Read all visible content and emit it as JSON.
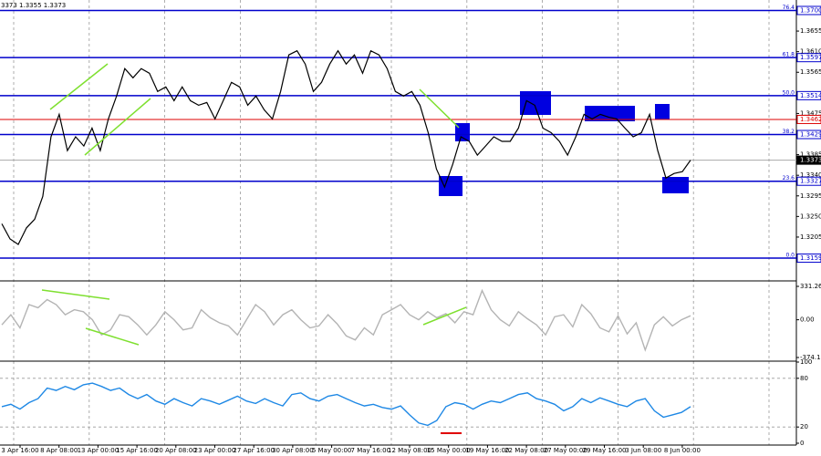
{
  "header": "3373 1.3355 1.3373",
  "chart_data": [
    {
      "type": "line",
      "ylim": [
        1.3115,
        1.3722
      ],
      "yticks": [
        {
          "value": 1.3655,
          "label": "1.3655"
        },
        {
          "value": 1.361,
          "label": "1.3610"
        },
        {
          "value": 1.3565,
          "label": "1.3565"
        },
        {
          "value": 1.3475,
          "label": "1.3475"
        },
        {
          "value": 1.3385,
          "label": "1.3385"
        },
        {
          "value": 1.334,
          "label": "1.3340"
        },
        {
          "value": 1.3295,
          "label": "1.3295"
        },
        {
          "value": 1.325,
          "label": "1.3250"
        },
        {
          "value": 1.3205,
          "label": "1.3205"
        }
      ],
      "levels": [
        {
          "value": 1.37,
          "label": "1.3700",
          "fib": "76.4",
          "color": "#0000cc"
        },
        {
          "value": 1.3597,
          "label": "1.3597",
          "fib": "61.8",
          "color": "#0000cc"
        },
        {
          "value": 1.3514,
          "label": "1.3514",
          "fib": "50.0",
          "color": "#0000cc"
        },
        {
          "value": 1.3462,
          "label": "1.3462",
          "color": "#dd0000"
        },
        {
          "value": 1.3429,
          "label": "1.3429",
          "fib": "38.2",
          "color": "#0000cc"
        },
        {
          "value": 1.3373,
          "label": "1.3373",
          "color": "#000000"
        },
        {
          "value": 1.3327,
          "label": "1.3327",
          "fib": "23.6",
          "color": "#0000cc"
        },
        {
          "value": 1.3159,
          "label": "1.3159",
          "fib": "0.0",
          "color": "#0000cc"
        }
      ],
      "series": [
        {
          "color": "#000000",
          "values": [
            1.3234,
            1.3201,
            1.3189,
            1.3225,
            1.3244,
            1.3294,
            1.3424,
            1.3473,
            1.3394,
            1.3424,
            1.3404,
            1.3443,
            1.3394,
            1.3463,
            1.3513,
            1.3573,
            1.3553,
            1.3573,
            1.3563,
            1.3523,
            1.3533,
            1.3503,
            1.3533,
            1.3503,
            1.3493,
            1.3499,
            1.3463,
            1.3503,
            1.3543,
            1.3533,
            1.3493,
            1.3513,
            1.3483,
            1.3463,
            1.3523,
            1.3603,
            1.3612,
            1.3583,
            1.3523,
            1.3543,
            1.3583,
            1.3612,
            1.3583,
            1.3603,
            1.3563,
            1.3612,
            1.3603,
            1.3573,
            1.3523,
            1.3513,
            1.3523,
            1.3493,
            1.3433,
            1.3354,
            1.3314,
            1.3364,
            1.3424,
            1.3414,
            1.3384,
            1.3404,
            1.3424,
            1.3414,
            1.3414,
            1.3443,
            1.3503,
            1.3493,
            1.3443,
            1.3433,
            1.3414,
            1.3384,
            1.3424,
            1.3473,
            1.3463,
            1.3473,
            1.3467,
            1.3463,
            1.3443,
            1.3424,
            1.3433,
            1.3473,
            1.3394,
            1.3334,
            1.3344,
            1.3348,
            1.3373
          ]
        }
      ]
    },
    {
      "type": "line",
      "ylim": [
        -374.144,
        331.2603
      ],
      "yticks": [
        331.2603,
        {
          "value": 0,
          "label": "0.00"
        },
        -374.144
      ],
      "series": [
        {
          "color": "#b4b4b4",
          "values": [
            -50,
            50,
            -80,
            150,
            120,
            200,
            150,
            50,
            100,
            80,
            0,
            -150,
            -100,
            50,
            30,
            -50,
            -150,
            -50,
            80,
            0,
            -100,
            -80,
            100,
            20,
            -30,
            -60,
            -150,
            0,
            150,
            80,
            -50,
            50,
            100,
            0,
            -80,
            -60,
            50,
            -40,
            -160,
            -200,
            -80,
            -150,
            50,
            100,
            150,
            50,
            0,
            80,
            20,
            60,
            -30,
            80,
            50,
            290,
            100,
            0,
            -60,
            80,
            10,
            -50,
            -150,
            30,
            50,
            -70,
            150,
            60,
            -80,
            -120,
            40,
            -140,
            -30,
            -300,
            -50,
            30,
            -60,
            0,
            40
          ]
        }
      ]
    },
    {
      "type": "line",
      "ylim": [
        0,
        100
      ],
      "yticks": [
        100,
        80,
        20,
        0
      ],
      "dashed_ticks": [
        80,
        20
      ],
      "series": [
        {
          "color": "#1e88e5",
          "values": [
            45,
            48,
            42,
            50,
            55,
            68,
            65,
            70,
            66,
            72,
            74,
            70,
            65,
            68,
            60,
            55,
            60,
            52,
            48,
            55,
            50,
            46,
            55,
            52,
            48,
            53,
            58,
            52,
            49,
            55,
            50,
            46,
            60,
            62,
            55,
            52,
            58,
            60,
            55,
            50,
            46,
            48,
            44,
            42,
            46,
            35,
            25,
            22,
            28,
            45,
            50,
            48,
            42,
            48,
            52,
            50,
            55,
            60,
            62,
            55,
            52,
            48,
            40,
            45,
            55,
            50,
            56,
            52,
            48,
            45,
            52,
            55,
            40,
            32,
            35,
            38,
            45
          ]
        }
      ],
      "x_labels": [
        "3 Apr 16:00",
        "8 Apr 08:00",
        "13 Apr 00:00",
        "15 Apr 16:00",
        "20 Apr 08:00",
        "23 Apr 00:00",
        "27 Apr 16:00",
        "30 Apr 08:00",
        "5 May 00:00",
        "7 May 16:00",
        "12 May 08:00",
        "15 May 00:00",
        "19 May 16:00",
        "22 May 08:00",
        "27 May 00:00",
        "29 May 16:00",
        "3 Jun 08:00",
        "8 Jun 00:00"
      ]
    }
  ]
}
